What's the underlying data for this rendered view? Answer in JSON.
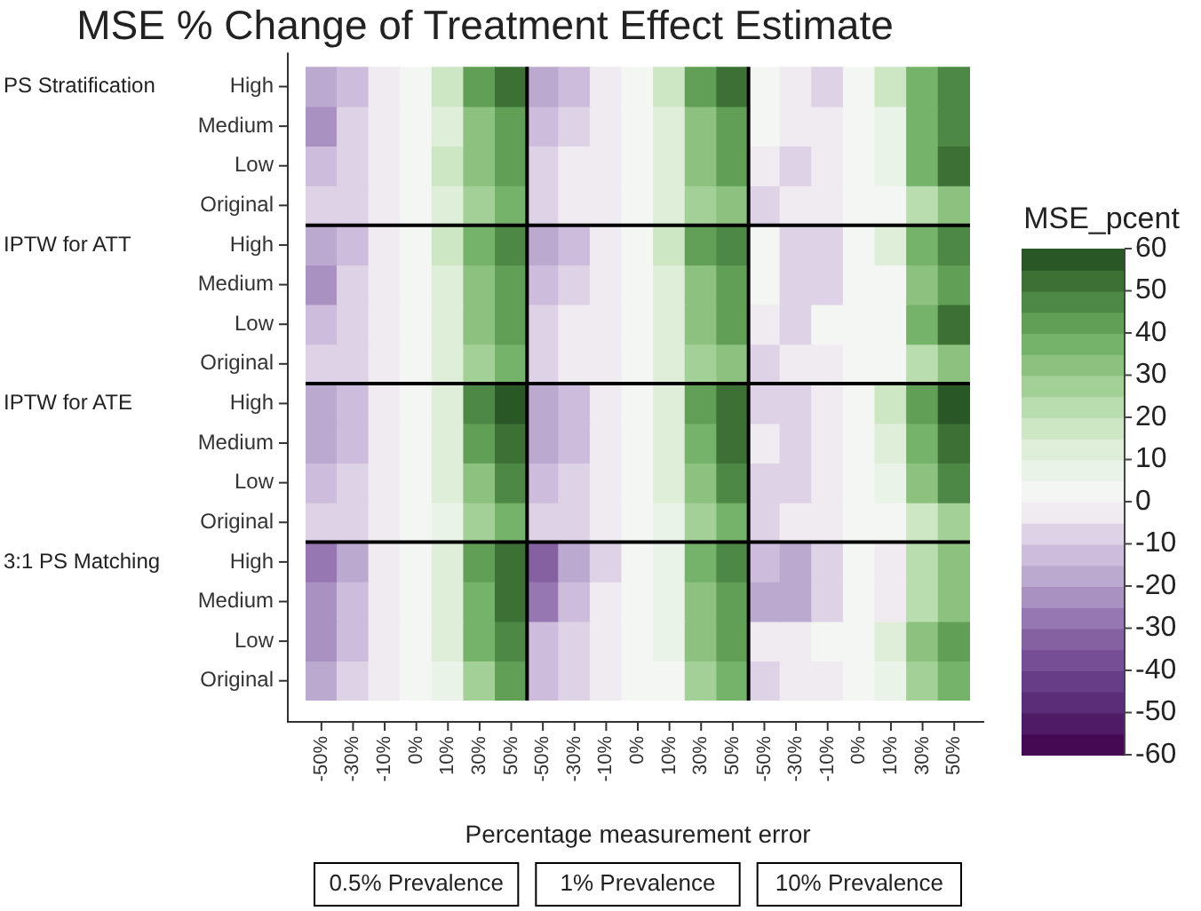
{
  "chart_data": {
    "type": "heatmap",
    "title": "MSE % Change of Treatment Effect Estimate",
    "xlabel": "Percentage measurement error",
    "clabel": "MSE_pcent",
    "categories": [
      "-50%",
      "-30%",
      "-10%",
      "0%",
      "10%",
      "30%",
      "50%",
      "-50%",
      "-30%",
      "-10%",
      "0%",
      "10%",
      "30%",
      "50%",
      "-50%",
      "-30%",
      "-10%",
      "0%",
      "10%",
      "30%",
      "50%"
    ],
    "y_categories": [
      "High",
      "Medium",
      "Low",
      "Original",
      "High",
      "Medium",
      "Low",
      "Original",
      "High",
      "Medium",
      "Low",
      "Original",
      "High",
      "Medium",
      "Low",
      "Original"
    ],
    "cells": [
      [
        -20,
        -12,
        -5,
        0,
        18,
        42,
        52,
        -18,
        -12,
        -5,
        0,
        18,
        42,
        52,
        2,
        -3,
        -8,
        0,
        18,
        37,
        47
      ],
      [
        -22,
        -8,
        -4,
        0,
        12,
        32,
        42,
        -12,
        -8,
        -4,
        0,
        12,
        32,
        42,
        1,
        -3,
        -4,
        0,
        8,
        37,
        47
      ],
      [
        -12,
        -8,
        -4,
        0,
        18,
        32,
        42,
        -8,
        -4,
        -3,
        0,
        14,
        32,
        42,
        -4,
        -8,
        -3,
        0,
        8,
        37,
        52
      ],
      [
        -7,
        -7,
        -3,
        0,
        12,
        27,
        37,
        -7,
        -4,
        -3,
        0,
        12,
        27,
        32,
        -8,
        -3,
        -3,
        0,
        3,
        22,
        32
      ],
      [
        -18,
        -12,
        -4,
        0,
        18,
        37,
        47,
        -18,
        -12,
        -4,
        0,
        18,
        42,
        47,
        4,
        -8,
        -8,
        0,
        12,
        37,
        47
      ],
      [
        -22,
        -8,
        -4,
        0,
        12,
        32,
        42,
        -12,
        -8,
        -3,
        0,
        12,
        32,
        42,
        1,
        -8,
        -8,
        0,
        4,
        32,
        42
      ],
      [
        -12,
        -8,
        -3,
        0,
        12,
        32,
        42,
        -8,
        -4,
        -3,
        0,
        14,
        32,
        42,
        -4,
        -8,
        0,
        0,
        4,
        37,
        52
      ],
      [
        -7,
        -7,
        -3,
        0,
        12,
        27,
        37,
        -7,
        -4,
        -3,
        0,
        12,
        27,
        32,
        -8,
        -3,
        -3,
        0,
        3,
        22,
        32
      ],
      [
        -18,
        -12,
        -3,
        0,
        14,
        47,
        58,
        -18,
        -12,
        -4,
        0,
        12,
        42,
        52,
        -8,
        -8,
        -3,
        0,
        18,
        42,
        58
      ],
      [
        -20,
        -14,
        -4,
        0,
        14,
        42,
        52,
        -20,
        -12,
        -4,
        0,
        12,
        37,
        52,
        -3,
        -8,
        -4,
        0,
        12,
        37,
        52
      ],
      [
        -12,
        -8,
        -3,
        0,
        14,
        32,
        47,
        -12,
        -8,
        -3,
        0,
        12,
        32,
        47,
        -8,
        -8,
        -3,
        0,
        8,
        32,
        47
      ],
      [
        -8,
        -7,
        -3,
        0,
        8,
        27,
        37,
        -8,
        -7,
        -3,
        0,
        8,
        27,
        37,
        -8,
        -3,
        -3,
        0,
        3,
        17,
        27
      ],
      [
        -28,
        -18,
        -4,
        0,
        14,
        42,
        52,
        -33,
        -18,
        -8,
        0,
        8,
        37,
        47,
        -12,
        -20,
        -8,
        0,
        -4,
        22,
        32
      ],
      [
        -23,
        -14,
        -4,
        0,
        14,
        37,
        52,
        -28,
        -12,
        -4,
        0,
        8,
        32,
        42,
        -18,
        -18,
        -8,
        0,
        -4,
        22,
        32
      ],
      [
        -23,
        -14,
        -3,
        0,
        12,
        37,
        47,
        -12,
        -8,
        -4,
        0,
        8,
        32,
        42,
        -3,
        -4,
        0,
        0,
        12,
        32,
        42
      ],
      [
        -18,
        -8,
        -3,
        0,
        8,
        27,
        42,
        -12,
        -8,
        -3,
        0,
        3,
        27,
        37,
        -8,
        -3,
        -3,
        0,
        8,
        27,
        37
      ]
    ],
    "clim": [
      -60,
      60
    ],
    "cticks": [
      -60,
      -50,
      -40,
      -30,
      -20,
      -10,
      0,
      10,
      20,
      30,
      40,
      50,
      60
    ],
    "annotations": [
      "PS Stratification",
      "IPTW for ATT",
      "IPTW for ATE",
      "3:1 PS Matching",
      "0.5% Prevalence",
      "1% Prevalence",
      "10% Prevalence"
    ]
  }
}
